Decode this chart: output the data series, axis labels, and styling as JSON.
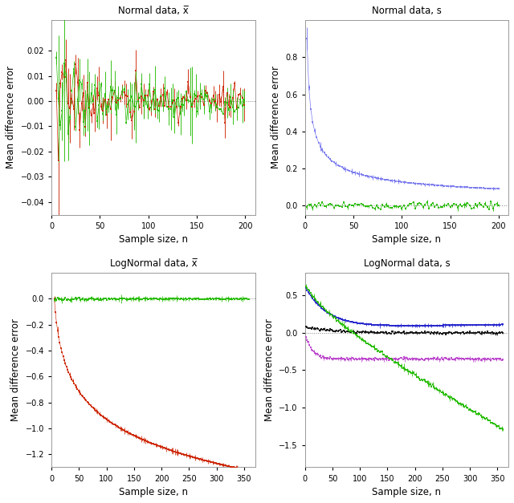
{
  "fig_width": 6.4,
  "fig_height": 6.27,
  "dpi": 100,
  "background_color": "#ffffff",
  "titles": [
    "Normal data, x̅",
    "Normal data, s",
    "LogNormal data, x̅",
    "LogNormal data, s"
  ],
  "xlabel": "Sample size, n",
  "ylabel": "Mean difference error",
  "panel1": {
    "xlim": [
      0,
      210
    ],
    "ylim": [
      -0.045,
      0.032
    ],
    "xticks": [
      0,
      50,
      100,
      150,
      200
    ],
    "yticks": [
      -0.04,
      -0.03,
      -0.02,
      -0.01,
      0.0,
      0.01,
      0.02
    ],
    "colors": [
      "#cc2200",
      "#22bb00"
    ]
  },
  "panel2": {
    "xlim": [
      0,
      210
    ],
    "ylim": [
      -0.05,
      1.0
    ],
    "xticks": [
      0,
      50,
      100,
      150,
      200
    ],
    "yticks": [
      0.0,
      0.2,
      0.4,
      0.6,
      0.8
    ],
    "colors": [
      "#7777ee",
      "#22bb00"
    ]
  },
  "panel3": {
    "xlim": [
      0,
      370
    ],
    "ylim": [
      -1.3,
      0.2
    ],
    "xticks": [
      0,
      50,
      100,
      150,
      200,
      250,
      300,
      350
    ],
    "yticks": [
      -1.2,
      -1.0,
      -0.8,
      -0.6,
      -0.4,
      -0.2,
      0.0
    ],
    "colors": [
      "#cc2200",
      "#22bb00"
    ]
  },
  "panel4": {
    "xlim": [
      0,
      370
    ],
    "ylim": [
      -1.8,
      0.8
    ],
    "xticks": [
      0,
      50,
      100,
      150,
      200,
      250,
      300,
      350
    ],
    "yticks": [
      -1.5,
      -1.0,
      -0.5,
      0.0,
      0.5
    ],
    "colors": [
      "#2222cc",
      "#111111",
      "#bb44cc",
      "#22bb00"
    ]
  }
}
